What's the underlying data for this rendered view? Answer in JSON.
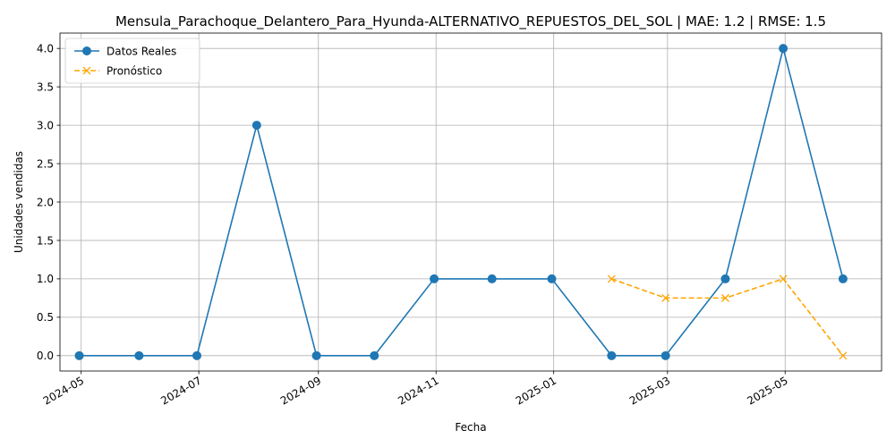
{
  "chart_data": {
    "type": "line",
    "title": "Mensula_Parachoque_Delantero_Para_Hyunda-ALTERNATIVO_REPUESTOS_DEL_SOL | MAE: 1.2 | RMSE: 1.5",
    "xlabel": "Fecha",
    "ylabel": "Unidades vendidas",
    "ylim": [
      -0.2,
      4.2
    ],
    "y_ticks": [
      0.0,
      0.5,
      1.0,
      1.5,
      2.0,
      2.5,
      3.0,
      3.5,
      4.0
    ],
    "y_tick_labels": [
      "0.0",
      "0.5",
      "1.0",
      "1.5",
      "2.0",
      "2.5",
      "3.0",
      "3.5",
      "4.0"
    ],
    "xlim": [
      "2024-04-20",
      "2025-06-20"
    ],
    "x_ticks": [
      "2024-05-01",
      "2024-07-01",
      "2024-09-01",
      "2024-11-01",
      "2025-01-01",
      "2025-03-01",
      "2025-05-01"
    ],
    "x_tick_labels": [
      "2024-05",
      "2024-07",
      "2024-09",
      "2024-11",
      "2025-01",
      "2025-03",
      "2025-05"
    ],
    "grid": true,
    "legend_position": "upper-left",
    "series": [
      {
        "name": "Datos Reales",
        "color": "#1f77b4",
        "style": "solid",
        "marker": "circle",
        "x": [
          "2024-04-30",
          "2024-05-31",
          "2024-06-30",
          "2024-07-31",
          "2024-08-31",
          "2024-09-30",
          "2024-10-31",
          "2024-11-30",
          "2024-12-31",
          "2025-01-31",
          "2025-02-28",
          "2025-03-31",
          "2025-04-30",
          "2025-05-31"
        ],
        "values": [
          0,
          0,
          0,
          3,
          0,
          0,
          1,
          1,
          1,
          0,
          0,
          1,
          4,
          1
        ]
      },
      {
        "name": "Pronóstico",
        "color": "#ffa500",
        "style": "dashed",
        "marker": "x",
        "x": [
          "2025-01-31",
          "2025-02-28",
          "2025-03-31",
          "2025-04-30",
          "2025-05-31"
        ],
        "values": [
          1.0,
          0.75,
          0.75,
          1.0,
          0.0
        ]
      }
    ]
  }
}
